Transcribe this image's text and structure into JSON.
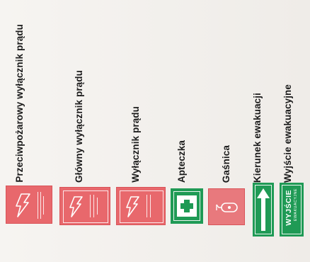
{
  "items": [
    {
      "label": "Przeciwpożarowy wyłącznik prądu",
      "icon": "fire-power-switch-sign-icon"
    },
    {
      "label": "Główny wyłącznik prądu",
      "icon": "main-power-switch-sign-icon"
    },
    {
      "label": "Wyłącznik prądu",
      "icon": "power-switch-sign-icon"
    },
    {
      "label": "Apteczka",
      "icon": "first-aid-kit-sign-icon"
    },
    {
      "label": "Gaśnica",
      "icon": "fire-extinguisher-sign-icon"
    },
    {
      "label": "Kierunek ewakuacji",
      "icon": "evacuation-direction-sign-icon"
    },
    {
      "label": "Wyjście ewakuacyjne",
      "icon": "emergency-exit-sign-icon"
    }
  ],
  "exit_sign": {
    "main": "WYJŚCIE",
    "sub": "EWAKUACYJNE"
  },
  "colors": {
    "red": "#e8686c",
    "green": "#1f9a55",
    "white": "#ffffff"
  }
}
